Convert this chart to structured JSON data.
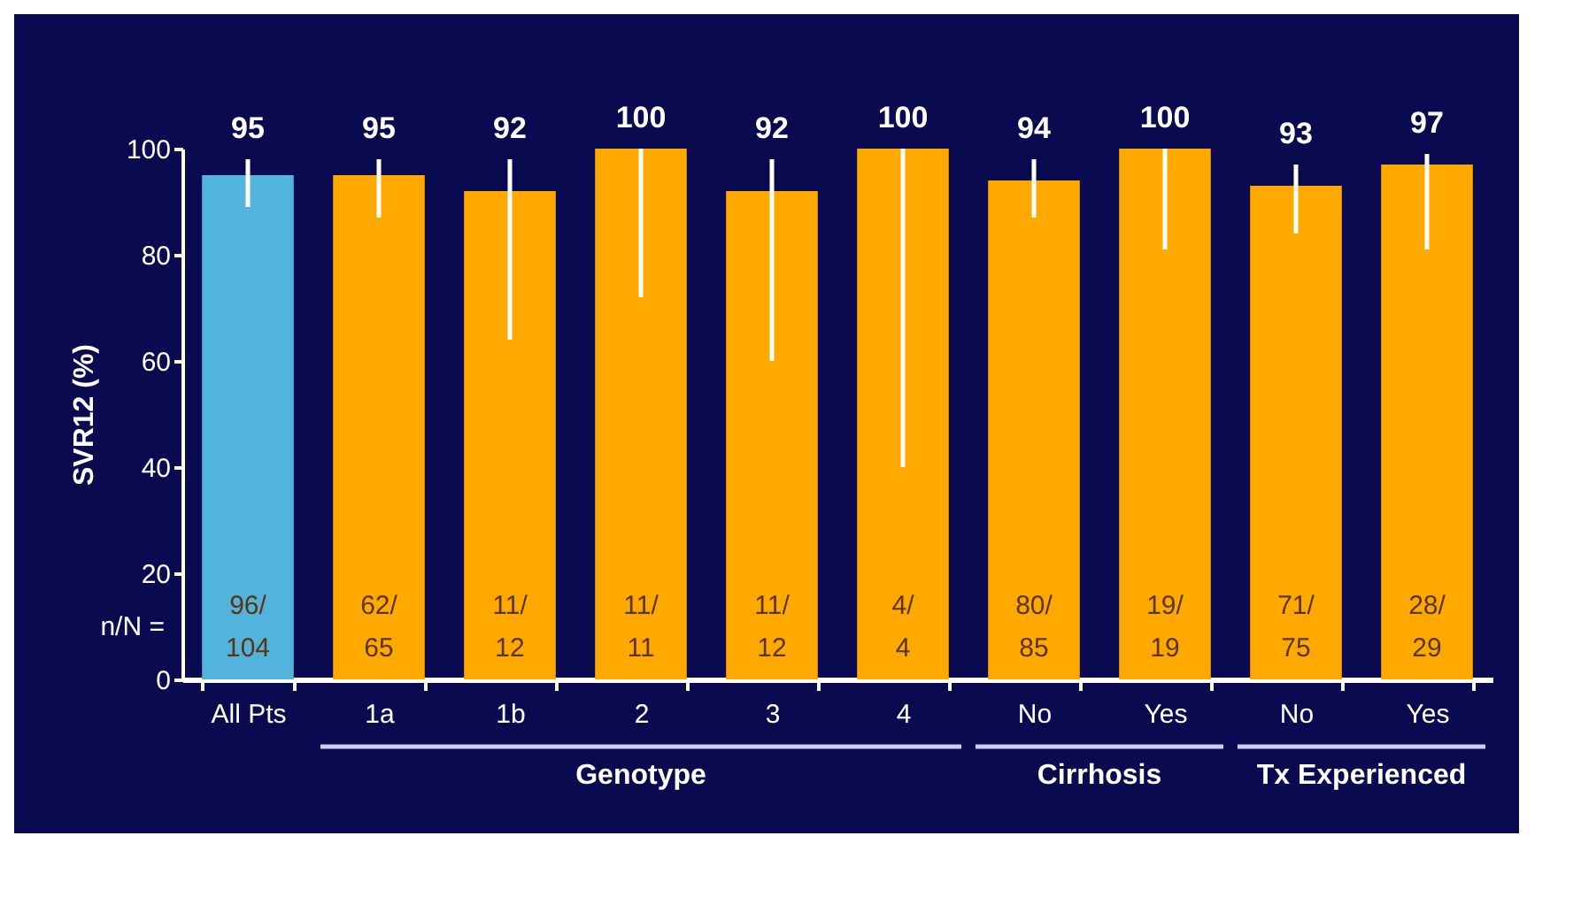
{
  "chart_data": {
    "type": "bar",
    "ylabel": "SVR12 (%)",
    "categories": [
      "All Pts",
      "1a",
      "1b",
      "2",
      "3",
      "4",
      "No",
      "Yes",
      "No",
      "Yes"
    ],
    "values": [
      95,
      95,
      92,
      100,
      92,
      100,
      94,
      100,
      93,
      97
    ],
    "colors": [
      "#52b4dc",
      "#ffa800",
      "#ffa800",
      "#ffa800",
      "#ffa800",
      "#ffa800",
      "#ffa800",
      "#ffa800",
      "#ffa800",
      "#ffa800"
    ],
    "errors": [
      [
        89,
        98
      ],
      [
        87,
        98
      ],
      [
        64,
        98
      ],
      [
        72,
        100
      ],
      [
        60,
        98
      ],
      [
        40,
        100
      ],
      [
        87,
        98
      ],
      [
        81,
        100
      ],
      [
        84,
        97
      ],
      [
        81,
        99
      ]
    ],
    "data_labels": true,
    "ylim": [
      0,
      100
    ],
    "yticks": [
      0,
      20,
      40,
      60,
      80,
      100
    ],
    "grid": false,
    "annotations": [
      "n/N =",
      "96/104",
      "62/65",
      "11/12",
      "11/11",
      "11/12",
      "4/4",
      "80/85",
      "19/19",
      "71/75",
      "28/29",
      "Genotype",
      "Cirrhosis",
      "Tx Experienced"
    ]
  }
}
